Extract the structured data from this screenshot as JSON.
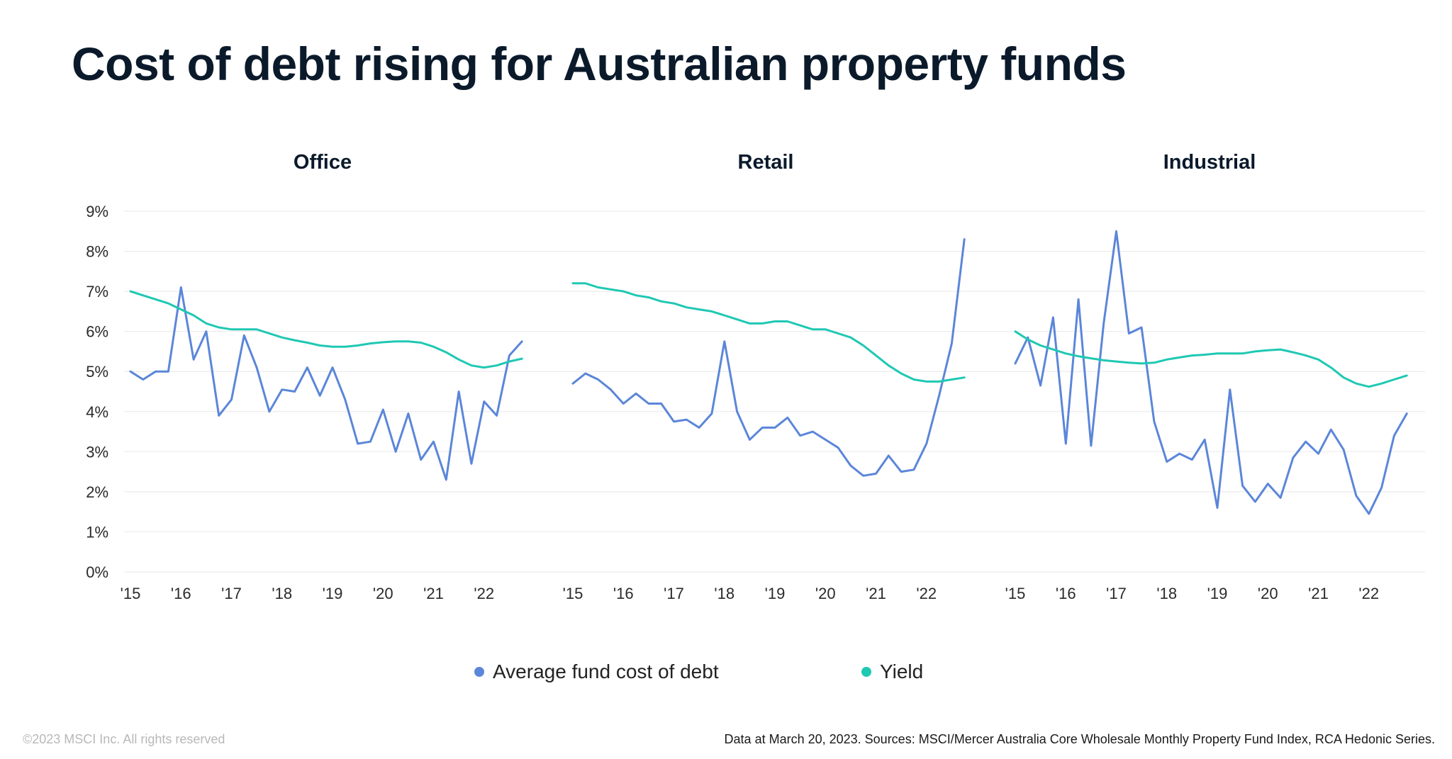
{
  "title": "Cost of debt rising for Australian property funds",
  "footer": {
    "copyright": "©2023 MSCI Inc. All rights reserved",
    "source": "Data at March 20, 2023. Sources: MSCI/Mercer Australia Core Wholesale Monthly Property Fund Index, RCA Hedonic Series."
  },
  "colors": {
    "cost_of_debt": "#5b86d9",
    "yield": "#1fc8b3",
    "grid": "#ececec",
    "text": "#2a2a2a"
  },
  "legend": [
    {
      "label": "Average fund cost of debt",
      "color": "#5b86d9"
    },
    {
      "label": "Yield",
      "color": "#1fc8b3"
    }
  ],
  "chart_data": [
    {
      "type": "line",
      "title": "Office",
      "ylim": [
        0,
        9
      ],
      "xlim": [
        2015,
        2023
      ],
      "y_ticks": [
        "0%",
        "1%",
        "2%",
        "3%",
        "4%",
        "5%",
        "6%",
        "7%",
        "8%",
        "9%"
      ],
      "x_ticks": [
        "'15",
        "'16",
        "'17",
        "'18",
        "'19",
        "'20",
        "'21",
        "'22"
      ],
      "grid": true,
      "series": [
        {
          "name": "Average fund cost of debt",
          "color": "#5b86d9",
          "x": [
            2015.0,
            2015.25,
            2015.5,
            2015.75,
            2016.0,
            2016.25,
            2016.5,
            2016.75,
            2017.0,
            2017.25,
            2017.5,
            2017.75,
            2018.0,
            2018.25,
            2018.5,
            2018.75,
            2019.0,
            2019.25,
            2019.5,
            2019.75,
            2020.0,
            2020.25,
            2020.5,
            2020.75,
            2021.0,
            2021.25,
            2021.5,
            2021.75,
            2022.0,
            2022.25,
            2022.5,
            2022.75
          ],
          "y": [
            5.0,
            4.8,
            5.0,
            5.0,
            7.1,
            5.3,
            6.0,
            3.9,
            4.3,
            5.9,
            5.1,
            4.0,
            4.55,
            4.5,
            5.1,
            4.4,
            5.1,
            4.3,
            3.2,
            3.25,
            4.05,
            3.0,
            3.95,
            2.8,
            3.25,
            2.3,
            4.5,
            2.7,
            4.25,
            3.9,
            5.4,
            5.75
          ]
        },
        {
          "name": "Yield",
          "color": "#1fc8b3",
          "x": [
            2015.0,
            2015.25,
            2015.5,
            2015.75,
            2016.0,
            2016.25,
            2016.5,
            2016.75,
            2017.0,
            2017.25,
            2017.5,
            2017.75,
            2018.0,
            2018.25,
            2018.5,
            2018.75,
            2019.0,
            2019.25,
            2019.5,
            2019.75,
            2020.0,
            2020.25,
            2020.5,
            2020.75,
            2021.0,
            2021.25,
            2021.5,
            2021.75,
            2022.0,
            2022.25,
            2022.5,
            2022.75
          ],
          "y": [
            7.0,
            6.9,
            6.8,
            6.7,
            6.55,
            6.4,
            6.2,
            6.1,
            6.05,
            6.05,
            6.05,
            5.95,
            5.85,
            5.78,
            5.72,
            5.65,
            5.62,
            5.62,
            5.65,
            5.7,
            5.73,
            5.75,
            5.75,
            5.72,
            5.62,
            5.48,
            5.3,
            5.15,
            5.1,
            5.15,
            5.25,
            5.32
          ]
        }
      ]
    },
    {
      "type": "line",
      "title": "Retail",
      "ylim": [
        0,
        9
      ],
      "xlim": [
        2015,
        2023
      ],
      "y_ticks": [
        "0%",
        "1%",
        "2%",
        "3%",
        "4%",
        "5%",
        "6%",
        "7%",
        "8%",
        "9%"
      ],
      "x_ticks": [
        "'15",
        "'16",
        "'17",
        "'18",
        "'19",
        "'20",
        "'21",
        "'22"
      ],
      "grid": true,
      "series": [
        {
          "name": "Average fund cost of debt",
          "color": "#5b86d9",
          "x": [
            2015.0,
            2015.25,
            2015.5,
            2015.75,
            2016.0,
            2016.25,
            2016.5,
            2016.75,
            2017.0,
            2017.25,
            2017.5,
            2017.75,
            2018.0,
            2018.25,
            2018.5,
            2018.75,
            2019.0,
            2019.25,
            2019.5,
            2019.75,
            2020.0,
            2020.25,
            2020.5,
            2020.75,
            2021.0,
            2021.25,
            2021.5,
            2021.75,
            2022.0,
            2022.25,
            2022.5,
            2022.75
          ],
          "y": [
            4.7,
            4.95,
            4.8,
            4.55,
            4.2,
            4.45,
            4.2,
            4.2,
            3.75,
            3.8,
            3.6,
            3.95,
            5.75,
            4.0,
            3.3,
            3.6,
            3.6,
            3.85,
            3.4,
            3.5,
            3.3,
            3.1,
            2.65,
            2.4,
            2.45,
            2.9,
            2.5,
            2.55,
            3.2,
            4.4,
            5.7,
            8.3
          ]
        },
        {
          "name": "Yield",
          "color": "#1fc8b3",
          "x": [
            2015.0,
            2015.25,
            2015.5,
            2015.75,
            2016.0,
            2016.25,
            2016.5,
            2016.75,
            2017.0,
            2017.25,
            2017.5,
            2017.75,
            2018.0,
            2018.25,
            2018.5,
            2018.75,
            2019.0,
            2019.25,
            2019.5,
            2019.75,
            2020.0,
            2020.25,
            2020.5,
            2020.75,
            2021.0,
            2021.25,
            2021.5,
            2021.75,
            2022.0,
            2022.25,
            2022.5,
            2022.75
          ],
          "y": [
            7.2,
            7.2,
            7.1,
            7.05,
            7.0,
            6.9,
            6.85,
            6.75,
            6.7,
            6.6,
            6.55,
            6.5,
            6.4,
            6.3,
            6.2,
            6.2,
            6.25,
            6.25,
            6.15,
            6.05,
            6.05,
            5.95,
            5.85,
            5.65,
            5.4,
            5.15,
            4.95,
            4.8,
            4.75,
            4.75,
            4.8,
            4.85
          ]
        }
      ]
    },
    {
      "type": "line",
      "title": "Industrial",
      "ylim": [
        0,
        9
      ],
      "xlim": [
        2015,
        2023
      ],
      "y_ticks": [
        "0%",
        "1%",
        "2%",
        "3%",
        "4%",
        "5%",
        "6%",
        "7%",
        "8%",
        "9%"
      ],
      "x_ticks": [
        "'15",
        "'16",
        "'17",
        "'18",
        "'19",
        "'20",
        "'21",
        "'22"
      ],
      "grid": true,
      "series": [
        {
          "name": "Average fund cost of debt",
          "color": "#5b86d9",
          "x": [
            2015.0,
            2015.25,
            2015.5,
            2015.75,
            2016.0,
            2016.25,
            2016.5,
            2016.75,
            2017.0,
            2017.25,
            2017.5,
            2017.75,
            2018.0,
            2018.25,
            2018.5,
            2018.75,
            2019.0,
            2019.25,
            2019.5,
            2019.75,
            2020.0,
            2020.25,
            2020.5,
            2020.75,
            2021.0,
            2021.25,
            2021.5,
            2021.75,
            2022.0,
            2022.25,
            2022.5,
            2022.75
          ],
          "y": [
            5.2,
            5.85,
            4.65,
            6.35,
            3.2,
            6.8,
            3.15,
            6.2,
            8.5,
            5.95,
            6.1,
            3.75,
            2.75,
            2.95,
            2.8,
            3.3,
            1.6,
            4.55,
            2.15,
            1.75,
            2.2,
            1.85,
            2.85,
            3.25,
            2.95,
            3.55,
            3.05,
            1.9,
            1.45,
            2.1,
            3.4,
            3.95
          ]
        },
        {
          "name": "Yield",
          "color": "#1fc8b3",
          "x": [
            2015.0,
            2015.25,
            2015.5,
            2015.75,
            2016.0,
            2016.25,
            2016.5,
            2016.75,
            2017.0,
            2017.25,
            2017.5,
            2017.75,
            2018.0,
            2018.25,
            2018.5,
            2018.75,
            2019.0,
            2019.25,
            2019.5,
            2019.75,
            2020.0,
            2020.25,
            2020.5,
            2020.75,
            2021.0,
            2021.25,
            2021.5,
            2021.75,
            2022.0,
            2022.25,
            2022.5,
            2022.75
          ],
          "y": [
            6.0,
            5.8,
            5.65,
            5.55,
            5.45,
            5.38,
            5.33,
            5.28,
            5.25,
            5.22,
            5.2,
            5.22,
            5.3,
            5.35,
            5.4,
            5.42,
            5.45,
            5.45,
            5.45,
            5.5,
            5.53,
            5.55,
            5.48,
            5.4,
            5.3,
            5.1,
            4.85,
            4.7,
            4.62,
            4.7,
            4.8,
            4.9
          ]
        }
      ]
    }
  ]
}
